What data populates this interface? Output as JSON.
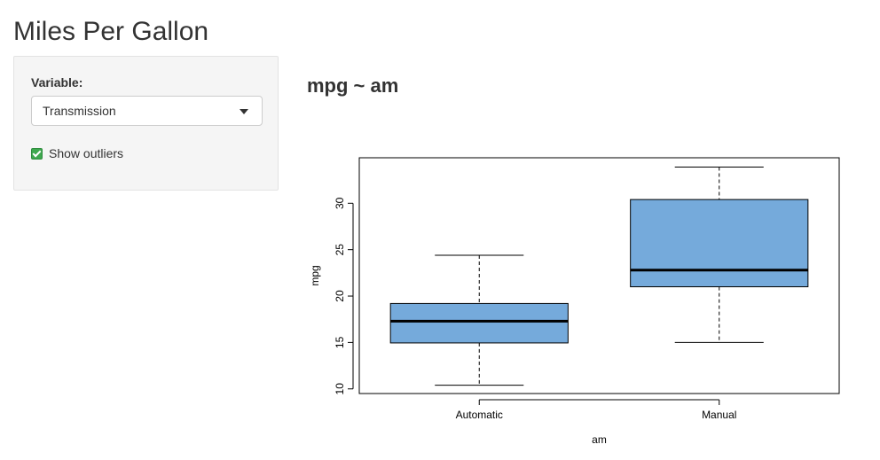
{
  "app": {
    "title": "Miles Per Gallon"
  },
  "sidebar": {
    "variable_label": "Variable:",
    "variable_value": "Transmission",
    "outliers_label": "Show outliers",
    "outliers_checked": true,
    "checkbox_color": "#3fa84f"
  },
  "main": {
    "plot_title": "mpg ~ am"
  },
  "chart_data": {
    "type": "boxplot",
    "title": "",
    "xlabel": "am",
    "ylabel": "mpg",
    "categories": [
      "Automatic",
      "Manual"
    ],
    "ylim": [
      9.5,
      34.9
    ],
    "yticks": [
      10,
      15,
      20,
      25,
      30
    ],
    "box_color": "#75aadb",
    "boxes": [
      {
        "name": "Automatic",
        "min": 10.4,
        "q1": 14.95,
        "median": 17.3,
        "q3": 19.2,
        "max": 24.4
      },
      {
        "name": "Manual",
        "min": 15.0,
        "q1": 21.0,
        "median": 22.8,
        "q3": 30.4,
        "max": 33.9
      }
    ],
    "grid": false
  }
}
